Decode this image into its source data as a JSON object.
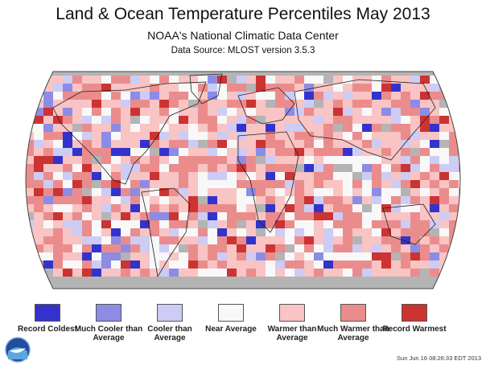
{
  "header": {
    "title": "Land & Ocean Temperature Percentiles May 2013",
    "subtitle": "NOAA's National Climatic Data Center",
    "source": "Data Source: MLOST version 3.5.3"
  },
  "legend": {
    "items": [
      {
        "label": "Record Coldest",
        "color": "#3333cc"
      },
      {
        "label": "Much Cooler than Average",
        "color": "#8c8ce6"
      },
      {
        "label": "Cooler than Average",
        "color": "#ccccf5"
      },
      {
        "label": "Near Average",
        "color": "#f8f8f8"
      },
      {
        "label": "Warmer than Average",
        "color": "#f8c4c4"
      },
      {
        "label": "Much Warmer than Average",
        "color": "#eb8c8c"
      },
      {
        "label": "Record Warmest",
        "color": "#cc3333"
      }
    ]
  },
  "map": {
    "missing_color": "#b4b4b4",
    "coast_color": "#222222"
  },
  "footer": {
    "timestamp": "Sun Jun 16 08:26:33 EDT 2013",
    "logo": "noaa-logo-icon"
  }
}
